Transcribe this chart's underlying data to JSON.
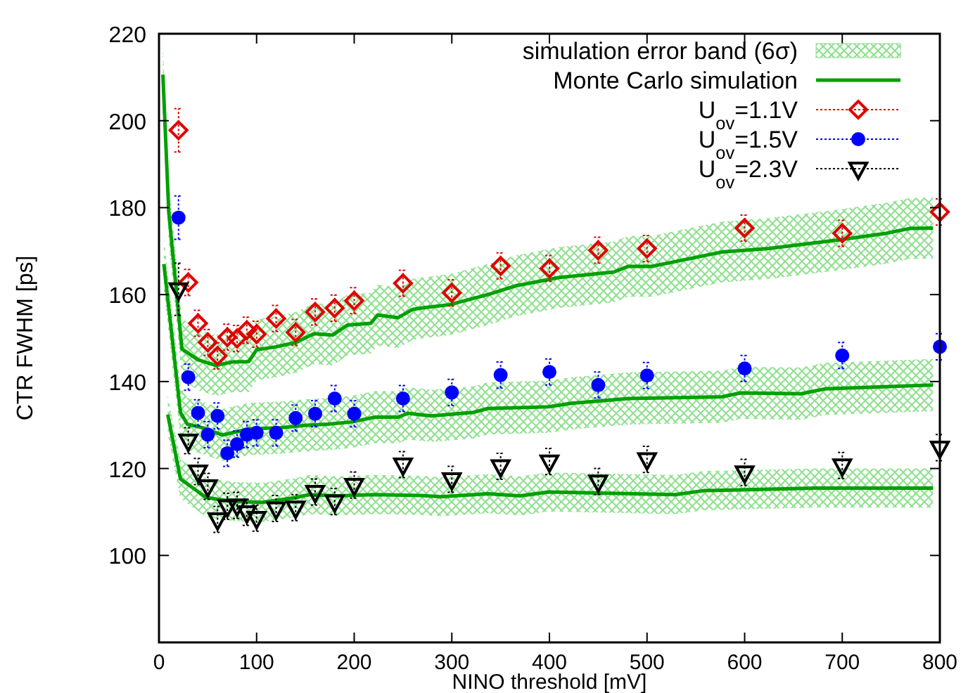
{
  "chart_data": {
    "type": "scatter",
    "xlabel": "NINO threshold [mV]",
    "ylabel": "CTR FWHM [ps]",
    "xlim": [
      0,
      800
    ],
    "ylim": [
      80,
      220
    ],
    "xticks": [
      0,
      100,
      200,
      300,
      400,
      500,
      600,
      700,
      800
    ],
    "yticks": [
      100,
      120,
      140,
      160,
      180,
      200,
      220
    ],
    "grid": false,
    "legend": "top right",
    "annotations": [
      "simulation error band (6σ)"
    ],
    "x": [
      20,
      30,
      40,
      50,
      60,
      70,
      80,
      90,
      100,
      120,
      140,
      160,
      180,
      200,
      250,
      300,
      350,
      400,
      450,
      500,
      600,
      700,
      800
    ],
    "series": [
      {
        "type": "line",
        "name": "Monte Carlo simulation",
        "color": "#00a000",
        "x": [
          4,
          10,
          23.5,
          40,
          58,
          75,
          92,
          100,
          120,
          140,
          159,
          178,
          193,
          217,
          224,
          245,
          260,
          269,
          298,
          337,
          365,
          409,
          466,
          481,
          505,
          529,
          577,
          625,
          697,
          745,
          769,
          793
        ],
        "values": [
          210.6,
          179,
          147.5,
          145,
          143.7,
          144.5,
          144.6,
          147.3,
          148,
          149,
          151,
          150.7,
          153,
          153.4,
          155.3,
          154.7,
          156.6,
          156.9,
          157.7,
          160,
          162,
          163.9,
          165.2,
          166.5,
          166.5,
          167.6,
          169.8,
          170.6,
          172.6,
          174.1,
          175.2,
          175.3
        ],
        "lower": [
          203.6,
          172,
          140.5,
          138,
          136.7,
          137.5,
          137.6,
          140.3,
          141,
          142,
          144,
          143.7,
          146,
          146.4,
          148.3,
          147.7,
          149.6,
          149.9,
          150.7,
          153,
          155,
          156.9,
          158.2,
          159.5,
          159.5,
          160.6,
          162.8,
          163.6,
          165.6,
          167.1,
          168.2,
          168.3
        ],
        "upper": [
          217.6,
          186,
          154.5,
          152,
          150.7,
          151.5,
          151.6,
          154.3,
          155,
          156,
          158,
          157.7,
          160,
          160.4,
          162.3,
          161.7,
          163.6,
          163.9,
          164.7,
          167,
          169,
          170.9,
          172.2,
          173.5,
          173.5,
          174.6,
          176.8,
          177.6,
          179.6,
          181.1,
          182.2,
          182.3
        ]
      },
      {
        "type": "line",
        "color": "#00a000",
        "x": [
          5,
          22,
          29,
          44,
          65,
          92,
          125,
          149,
          173,
          197,
          221,
          245,
          255,
          279,
          322,
          337,
          399,
          423,
          481,
          577,
          596,
          658,
          682,
          793
        ],
        "values": [
          167,
          132.9,
          130.2,
          129.4,
          127.7,
          129.1,
          129.4,
          129.9,
          130.2,
          130.7,
          131.8,
          131.8,
          132.7,
          132.1,
          132.9,
          133.8,
          134.2,
          135,
          136.1,
          136.5,
          137.4,
          137.2,
          138.3,
          139.2
        ],
        "lower": [
          161,
          126.9,
          124.2,
          123.4,
          121.7,
          123.1,
          123.4,
          123.9,
          124.2,
          124.7,
          125.8,
          125.8,
          126.7,
          126.1,
          126.9,
          127.8,
          128.2,
          129,
          130.1,
          130.5,
          131.4,
          131.2,
          132.3,
          133.2
        ],
        "upper": [
          173,
          138.9,
          136.2,
          135.4,
          133.7,
          135.1,
          135.4,
          135.9,
          136.2,
          136.7,
          137.8,
          137.8,
          138.7,
          138.1,
          138.9,
          139.8,
          140.2,
          141,
          142.1,
          142.5,
          143.4,
          143.2,
          144.3,
          145.2
        ]
      },
      {
        "type": "line",
        "color": "#00a000",
        "x": [
          9,
          22,
          48.5,
          77,
          106,
          140,
          154,
          183,
          221,
          269,
          289,
          337,
          370,
          399,
          529,
          558,
          673,
          793
        ],
        "values": [
          132.4,
          117.6,
          113.3,
          112.4,
          112.2,
          113.3,
          114,
          113.7,
          114,
          113.8,
          113.5,
          114.2,
          113.7,
          114.6,
          114,
          114.9,
          115.5,
          115.5
        ],
        "lower": [
          127.9,
          113.1,
          108.8,
          107.9,
          107.7,
          108.8,
          109.5,
          109.2,
          109.5,
          109.3,
          109,
          109.7,
          109.2,
          110.1,
          109.5,
          110.4,
          111,
          111
        ],
        "upper": [
          136.9,
          122.1,
          117.8,
          116.9,
          116.7,
          117.8,
          118.5,
          118.2,
          118.5,
          118.3,
          118,
          118.7,
          118.2,
          119.1,
          118.5,
          119.4,
          120,
          120
        ]
      },
      {
        "name": "U$_{ov}$=1.1V",
        "color": "#e00000",
        "marker": "diamond",
        "values": [
          197.8,
          162.8,
          153.4,
          149,
          145.9,
          150.2,
          149.9,
          151.8,
          150.9,
          154.5,
          151.3,
          156,
          156.9,
          158.6,
          162.6,
          160.4,
          166.6,
          166,
          170.2,
          170.6,
          175.3,
          174.1,
          179
        ],
        "errors": [
          5,
          3,
          3,
          3,
          3,
          3,
          3,
          3,
          3,
          3,
          3,
          3,
          3,
          3,
          3,
          3,
          3,
          3,
          3,
          3,
          3,
          3,
          3
        ]
      },
      {
        "name": "U$_{ov}$=1.5V",
        "color": "#0000ff",
        "marker": "circle",
        "values": [
          177.7,
          141,
          132.8,
          127.8,
          132.1,
          123.5,
          125.6,
          127.8,
          128.2,
          128.2,
          131.6,
          132.6,
          136.1,
          132.6,
          136.1,
          137.5,
          141.5,
          142.2,
          139.2,
          141.4,
          143,
          146,
          148
        ],
        "errors": [
          5,
          3,
          3,
          3,
          3,
          3,
          3,
          3,
          3,
          3,
          3,
          3,
          3,
          3,
          3,
          3,
          3,
          3,
          3,
          3,
          3,
          3,
          3
        ]
      },
      {
        "name": "U$_{ov}$=2.3V",
        "color": "#000000",
        "marker": "triangle",
        "values": [
          161.2,
          126.4,
          119.3,
          115.9,
          108.3,
          111.3,
          111.5,
          109.9,
          108.6,
          110.8,
          111,
          114.6,
          112.4,
          116.2,
          120.9,
          117.5,
          120.5,
          121.6,
          117,
          122.1,
          119.1,
          120.7,
          124.8
        ],
        "errors": [
          6,
          3,
          3,
          3,
          3,
          3,
          3,
          3,
          3,
          3,
          3,
          3,
          3,
          3,
          3,
          3,
          3,
          3,
          3,
          3,
          3,
          3,
          3
        ]
      }
    ]
  }
}
